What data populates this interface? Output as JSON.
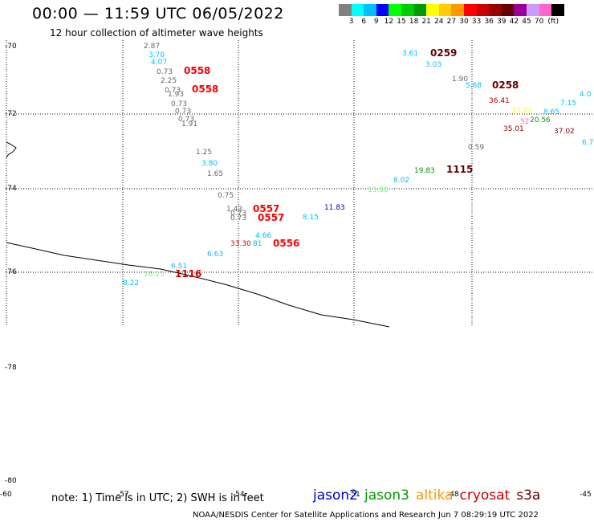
{
  "title": "00:00 — 11:59 UTC 06/05/2022",
  "subtitle": "12 hour collection of altimeter wave heights",
  "legend": {
    "unit": "(ft)",
    "colors": [
      "#808080",
      "#00ffff",
      "#00bfff",
      "#0000ff",
      "#00ff00",
      "#00cc00",
      "#009900",
      "#ffff00",
      "#ffcc00",
      "#ff9900",
      "#ff0000",
      "#cc0000",
      "#990000",
      "#660000",
      "#990099",
      "#cc99ff",
      "#ff66cc",
      "#000000"
    ],
    "ticks": [
      "3",
      "6",
      "9",
      "12",
      "15",
      "18",
      "21",
      "24",
      "27",
      "30",
      "33",
      "36",
      "39",
      "42",
      "45",
      "70"
    ]
  },
  "lat_labels": [
    "-70",
    "-72",
    "-74",
    "-76",
    "-78",
    "-80"
  ],
  "lon_labels": [
    "-60",
    "-57",
    "-54",
    "-51",
    "-48",
    "-45"
  ],
  "note": "note: 1) Time is in UTC; 2) SWH is in feet",
  "satellites": [
    {
      "name": "jason2",
      "color": "#0000cc"
    },
    {
      "name": "jason3",
      "color": "#009900"
    },
    {
      "name": "altika",
      "color": "#ff9900"
    },
    {
      "name": "cryosat",
      "color": "#cc0000"
    },
    {
      "name": "s3a",
      "color": "#660000"
    }
  ],
  "credit": "NOAA/NESDIS Center for Satellite Applications and Research   Jun  7 08:29:19 UTC 2022",
  "wave_labels": [
    {
      "text": "2.87",
      "color": "#666666"
    },
    {
      "text": "3.70",
      "color": "#00bfff"
    },
    {
      "text": "4.07",
      "color": "#00bfff"
    },
    {
      "text": "0.73",
      "color": "#666666"
    },
    {
      "text": "0558",
      "color": "#ff0000"
    },
    {
      "text": "2.25",
      "color": "#666666"
    },
    {
      "text": "0.73",
      "color": "#666666"
    },
    {
      "text": "0558",
      "color": "#ff0000"
    },
    {
      "text": "1.93",
      "color": "#666666"
    },
    {
      "text": "0.73",
      "color": "#666666"
    },
    {
      "text": "0.73",
      "color": "#666666"
    },
    {
      "text": "0.73",
      "color": "#666666"
    },
    {
      "text": "1.91",
      "color": "#666666"
    },
    {
      "text": "1.25",
      "color": "#666666"
    },
    {
      "text": "3.80",
      "color": "#00bfff"
    },
    {
      "text": "1.65",
      "color": "#666666"
    },
    {
      "text": "0.75",
      "color": "#666666"
    },
    {
      "text": "1.43",
      "color": "#666666"
    },
    {
      "text": "0.73",
      "color": "#666666"
    },
    {
      "text": "0.73",
      "color": "#666666"
    },
    {
      "text": "0557",
      "color": "#ff0000"
    },
    {
      "text": "0557",
      "color": "#ff0000"
    },
    {
      "text": "11.83",
      "color": "#0000cc"
    },
    {
      "text": "8.15",
      "color": "#00bfff"
    },
    {
      "text": "4.66",
      "color": "#00bfff"
    },
    {
      "text": "33.30",
      "color": "#cc0000"
    },
    {
      "text": "81",
      "color": "#00bfff"
    },
    {
      "text": "0556",
      "color": "#ff0000"
    },
    {
      "text": "6.63",
      "color": "#00bfff"
    },
    {
      "text": "6.51",
      "color": "#00bfff"
    },
    {
      "text": "16.23",
      "color": "#66ff66"
    },
    {
      "text": "1116",
      "color": "#cc0000"
    },
    {
      "text": "8.22",
      "color": "#00bfff"
    },
    {
      "text": "3.61",
      "color": "#00bfff"
    },
    {
      "text": "0259",
      "color": "#660000"
    },
    {
      "text": "3.03",
      "color": "#00bfff"
    },
    {
      "text": "1.90",
      "color": "#666666"
    },
    {
      "text": "5.68",
      "color": "#00bfff"
    },
    {
      "text": "0258",
      "color": "#660000"
    },
    {
      "text": "36.41",
      "color": "#990000"
    },
    {
      "text": "7.15",
      "color": "#00bfff"
    },
    {
      "text": "4.0",
      "color": "#00bfff"
    },
    {
      "text": "33.22",
      "color": "#ffff00"
    },
    {
      "text": "8.65",
      "color": "#00bfff"
    },
    {
      "text": "52",
      "color": "#ff66cc"
    },
    {
      "text": "20.56",
      "color": "#009900"
    },
    {
      "text": "35.01",
      "color": "#990000"
    },
    {
      "text": "37.02",
      "color": "#990000"
    },
    {
      "text": "6.7",
      "color": "#00bfff"
    },
    {
      "text": "0.59",
      "color": "#666666"
    },
    {
      "text": "19.83",
      "color": "#009900"
    },
    {
      "text": "1115",
      "color": "#660000"
    },
    {
      "text": "8.02",
      "color": "#00bfff"
    },
    {
      "text": "13.30",
      "color": "#66ff66"
    }
  ]
}
